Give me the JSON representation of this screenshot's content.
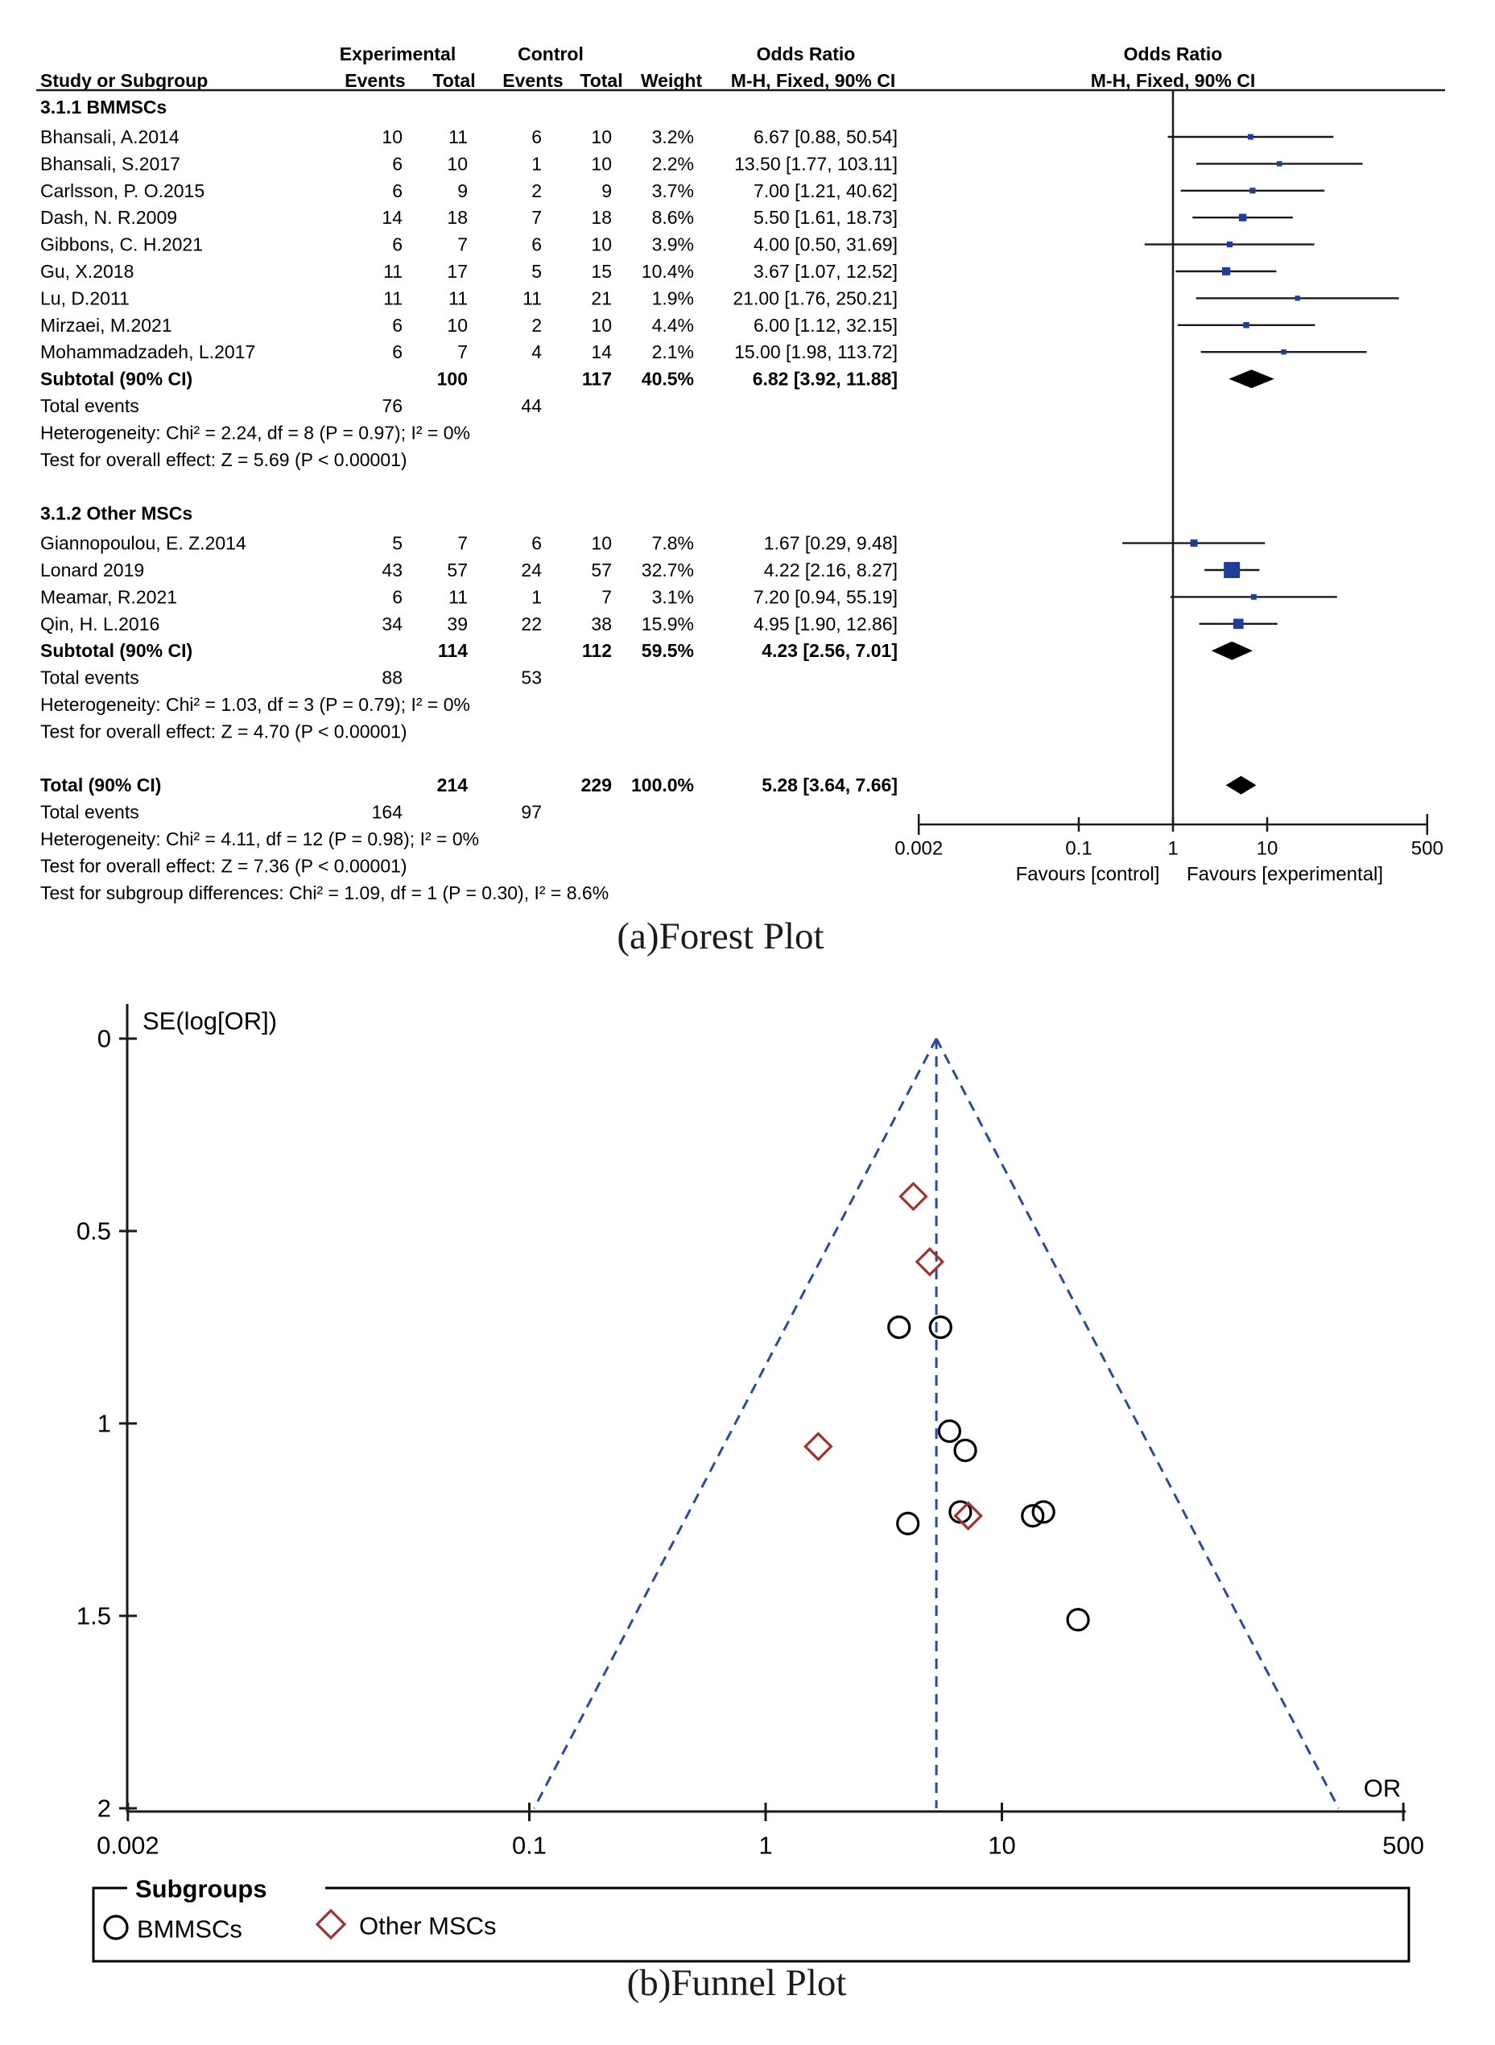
{
  "colors": {
    "text": "#000000",
    "line": "#1a1a1a",
    "marker_square": "#1f3d99",
    "funnel_dash": "#2b4a9b",
    "funnel_diamond": "#a03232",
    "funnel_circle": "#000000"
  },
  "chart_data": [
    {
      "type": "forest",
      "title": "(a)Forest Plot",
      "headers": {
        "experimental": "Experimental",
        "control": "Control",
        "odds_ratio": "Odds Ratio",
        "study": "Study or Subgroup",
        "events": "Events",
        "total": "Total",
        "weight": "Weight",
        "method": "M-H, Fixed, 90% CI"
      },
      "x_axis": {
        "scale": "log",
        "ticks": [
          0.002,
          0.1,
          1,
          10,
          500
        ],
        "tick_labels": [
          "0.002",
          "0.1",
          "1",
          "10",
          "500"
        ],
        "favours_left": "Favours [control]",
        "favours_right": "Favours [experimental]"
      },
      "subgroups": [
        {
          "name": "3.1.1 BMMSCs",
          "studies": [
            {
              "study": "Bhansali, A.2014",
              "exp_events": 10,
              "exp_total": 11,
              "ctl_events": 6,
              "ctl_total": 10,
              "weight": "3.2%",
              "weight_pct": 3.2,
              "or": 6.67,
              "ci_lo": 0.88,
              "ci_hi": 50.54,
              "label": "6.67 [0.88, 50.54]"
            },
            {
              "study": "Bhansali, S.2017",
              "exp_events": 6,
              "exp_total": 10,
              "ctl_events": 1,
              "ctl_total": 10,
              "weight": "2.2%",
              "weight_pct": 2.2,
              "or": 13.5,
              "ci_lo": 1.77,
              "ci_hi": 103.11,
              "label": "13.50 [1.77, 103.11]"
            },
            {
              "study": "Carlsson, P. O.2015",
              "exp_events": 6,
              "exp_total": 9,
              "ctl_events": 2,
              "ctl_total": 9,
              "weight": "3.7%",
              "weight_pct": 3.7,
              "or": 7.0,
              "ci_lo": 1.21,
              "ci_hi": 40.62,
              "label": "7.00 [1.21, 40.62]"
            },
            {
              "study": "Dash, N. R.2009",
              "exp_events": 14,
              "exp_total": 18,
              "ctl_events": 7,
              "ctl_total": 18,
              "weight": "8.6%",
              "weight_pct": 8.6,
              "or": 5.5,
              "ci_lo": 1.61,
              "ci_hi": 18.73,
              "label": "5.50 [1.61, 18.73]"
            },
            {
              "study": "Gibbons, C. H.2021",
              "exp_events": 6,
              "exp_total": 7,
              "ctl_events": 6,
              "ctl_total": 10,
              "weight": "3.9%",
              "weight_pct": 3.9,
              "or": 4.0,
              "ci_lo": 0.5,
              "ci_hi": 31.69,
              "label": "4.00 [0.50, 31.69]"
            },
            {
              "study": "Gu, X.2018",
              "exp_events": 11,
              "exp_total": 17,
              "ctl_events": 5,
              "ctl_total": 15,
              "weight": "10.4%",
              "weight_pct": 10.4,
              "or": 3.67,
              "ci_lo": 1.07,
              "ci_hi": 12.52,
              "label": "3.67 [1.07, 12.52]"
            },
            {
              "study": "Lu, D.2011",
              "exp_events": 11,
              "exp_total": 11,
              "ctl_events": 11,
              "ctl_total": 21,
              "weight": "1.9%",
              "weight_pct": 1.9,
              "or": 21.0,
              "ci_lo": 1.76,
              "ci_hi": 250.21,
              "label": "21.00 [1.76, 250.21]"
            },
            {
              "study": "Mirzaei, M.2021",
              "exp_events": 6,
              "exp_total": 10,
              "ctl_events": 2,
              "ctl_total": 10,
              "weight": "4.4%",
              "weight_pct": 4.4,
              "or": 6.0,
              "ci_lo": 1.12,
              "ci_hi": 32.15,
              "label": "6.00 [1.12, 32.15]"
            },
            {
              "study": "Mohammadzadeh, L.2017",
              "exp_events": 6,
              "exp_total": 7,
              "ctl_events": 4,
              "ctl_total": 14,
              "weight": "2.1%",
              "weight_pct": 2.1,
              "or": 15.0,
              "ci_lo": 1.98,
              "ci_hi": 113.72,
              "label": "15.00 [1.98, 113.72]"
            }
          ],
          "subtotal": {
            "label": "Subtotal (90% CI)",
            "exp_total": 100,
            "ctl_total": 117,
            "weight": "40.5%",
            "or": 6.82,
            "ci_lo": 3.92,
            "ci_hi": 11.88,
            "ci_label": "6.82 [3.92, 11.88]"
          },
          "total_events": {
            "label": "Total events",
            "exp": 76,
            "ctl": 44
          },
          "heterogeneity": "Heterogeneity: Chi² = 2.24, df = 8 (P = 0.97); I² = 0%",
          "overall_effect": "Test for overall effect: Z = 5.69 (P < 0.00001)"
        },
        {
          "name": "3.1.2 Other MSCs",
          "studies": [
            {
              "study": "Giannopoulou, E. Z.2014",
              "exp_events": 5,
              "exp_total": 7,
              "ctl_events": 6,
              "ctl_total": 10,
              "weight": "7.8%",
              "weight_pct": 7.8,
              "or": 1.67,
              "ci_lo": 0.29,
              "ci_hi": 9.48,
              "label": "1.67 [0.29, 9.48]"
            },
            {
              "study": "Lonard 2019",
              "exp_events": 43,
              "exp_total": 57,
              "ctl_events": 24,
              "ctl_total": 57,
              "weight": "32.7%",
              "weight_pct": 32.7,
              "or": 4.22,
              "ci_lo": 2.16,
              "ci_hi": 8.27,
              "label": "4.22 [2.16, 8.27]"
            },
            {
              "study": "Meamar, R.2021",
              "exp_events": 6,
              "exp_total": 11,
              "ctl_events": 1,
              "ctl_total": 7,
              "weight": "3.1%",
              "weight_pct": 3.1,
              "or": 7.2,
              "ci_lo": 0.94,
              "ci_hi": 55.19,
              "label": "7.20 [0.94, 55.19]"
            },
            {
              "study": "Qin, H. L.2016",
              "exp_events": 34,
              "exp_total": 39,
              "ctl_events": 22,
              "ctl_total": 38,
              "weight": "15.9%",
              "weight_pct": 15.9,
              "or": 4.95,
              "ci_lo": 1.9,
              "ci_hi": 12.86,
              "label": "4.95 [1.90, 12.86]"
            }
          ],
          "subtotal": {
            "label": "Subtotal (90% CI)",
            "exp_total": 114,
            "ctl_total": 112,
            "weight": "59.5%",
            "or": 4.23,
            "ci_lo": 2.56,
            "ci_hi": 7.01,
            "ci_label": "4.23 [2.56, 7.01]"
          },
          "total_events": {
            "label": "Total events",
            "exp": 88,
            "ctl": 53
          },
          "heterogeneity": "Heterogeneity: Chi² = 1.03, df = 3 (P = 0.79); I² = 0%",
          "overall_effect": "Test for overall effect: Z = 4.70 (P < 0.00001)"
        }
      ],
      "total": {
        "label": "Total (90% CI)",
        "exp_total": 214,
        "ctl_total": 229,
        "weight": "100.0%",
        "or": 5.28,
        "ci_lo": 3.64,
        "ci_hi": 7.66,
        "ci_label": "5.28 [3.64, 7.66]"
      },
      "total_events": {
        "label": "Total events",
        "exp": 164,
        "ctl": 97
      },
      "footer": [
        "Heterogeneity: Chi² = 4.11, df = 12 (P = 0.98); I² = 0%",
        "Test for overall effect: Z = 7.36 (P < 0.00001)",
        "Test for subgroup differences: Chi² = 1.09, df = 1 (P = 0.30), I² = 8.6%"
      ]
    },
    {
      "type": "scatter",
      "title": "(b)Funnel Plot",
      "xlabel": "OR",
      "ylabel": "SE(log[OR])",
      "x_scale": "log",
      "xlim": [
        0.002,
        500
      ],
      "ylim": [
        0,
        2
      ],
      "y_reversed": true,
      "xticks": [
        0.002,
        0.1,
        1,
        10,
        500
      ],
      "xtick_labels": [
        "0.002",
        "0.1",
        "1",
        "10",
        "500"
      ],
      "yticks": [
        0,
        0.5,
        1,
        1.5,
        2
      ],
      "ytick_labels": [
        "0",
        "0.5",
        "1",
        "1.5",
        "2"
      ],
      "pooled_or": 5.28,
      "pseudo_ci_z": 1.96,
      "series": [
        {
          "name": "BMMSCs",
          "marker": "circle",
          "points": [
            {
              "study": "Bhansali, A.2014",
              "or": 6.67,
              "se": 1.23
            },
            {
              "study": "Bhansali, S.2017",
              "or": 13.5,
              "se": 1.24
            },
            {
              "study": "Carlsson, P. O.2015",
              "or": 7.0,
              "se": 1.07
            },
            {
              "study": "Dash, N. R.2009",
              "or": 5.5,
              "se": 0.75
            },
            {
              "study": "Gibbons, C. H.2021",
              "or": 4.0,
              "se": 1.26
            },
            {
              "study": "Gu, X.2018",
              "or": 3.67,
              "se": 0.75
            },
            {
              "study": "Lu, D.2011",
              "or": 21.0,
              "se": 1.51
            },
            {
              "study": "Mirzaei, M.2021",
              "or": 6.0,
              "se": 1.02
            },
            {
              "study": "Mohammadzadeh, L.2017",
              "or": 15.0,
              "se": 1.23
            }
          ]
        },
        {
          "name": "Other MSCs",
          "marker": "diamond",
          "points": [
            {
              "study": "Giannopoulou, E. Z.2014",
              "or": 1.67,
              "se": 1.06
            },
            {
              "study": "Lonard 2019",
              "or": 4.22,
              "se": 0.41
            },
            {
              "study": "Meamar, R.2021",
              "or": 7.2,
              "se": 1.24
            },
            {
              "study": "Qin, H. L.2016",
              "or": 4.95,
              "se": 0.58
            }
          ]
        }
      ],
      "legend": {
        "title": "Subgroups",
        "items": [
          "BMMSCs",
          "Other MSCs"
        ]
      }
    }
  ]
}
